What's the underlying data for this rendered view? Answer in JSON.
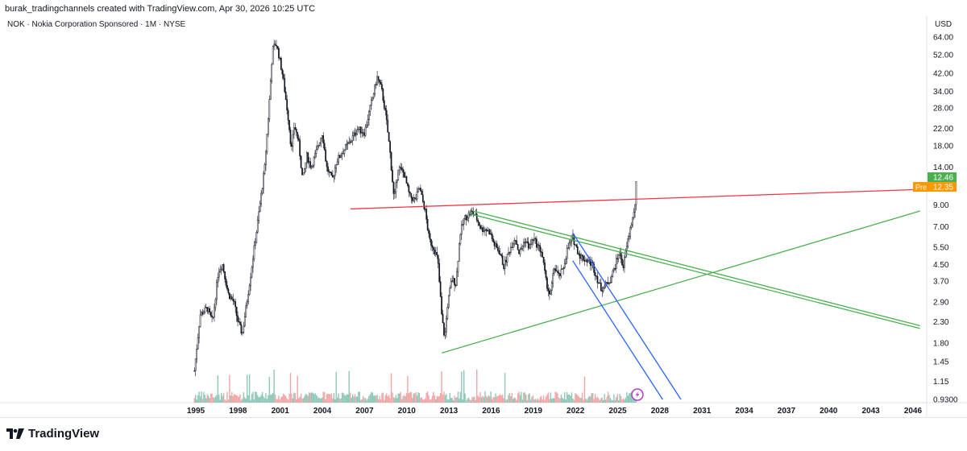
{
  "header": {
    "attribution": "burak_tradingchannels created with TradingView.com, Apr 30, 2026 10:25 UTC",
    "symbol": "NOK · Nokia Corporation Sponsored · 1M · NYSE"
  },
  "brand": {
    "name": "TradingView"
  },
  "price_axis": {
    "currency": "USD",
    "ticks": [
      {
        "label": "64.00",
        "v": 64
      },
      {
        "label": "52.00",
        "v": 52
      },
      {
        "label": "42.00",
        "v": 42
      },
      {
        "label": "34.00",
        "v": 34
      },
      {
        "label": "28.00",
        "v": 28
      },
      {
        "label": "22.00",
        "v": 22
      },
      {
        "label": "18.00",
        "v": 18
      },
      {
        "label": "14.00",
        "v": 14
      },
      {
        "label": "9.00",
        "v": 9
      },
      {
        "label": "7.00",
        "v": 7
      },
      {
        "label": "5.50",
        "v": 5.5
      },
      {
        "label": "4.50",
        "v": 4.5
      },
      {
        "label": "3.70",
        "v": 3.7
      },
      {
        "label": "2.90",
        "v": 2.9
      },
      {
        "label": "2.30",
        "v": 2.3
      },
      {
        "label": "1.80",
        "v": 1.8
      },
      {
        "label": "1.45",
        "v": 1.45
      },
      {
        "label": "1.15",
        "v": 1.15
      },
      {
        "label": "0.9300",
        "v": 0.93
      }
    ],
    "last_price": {
      "label": "12.46",
      "v": 12.46,
      "color": "#4caf50"
    },
    "pre_price": {
      "tag": "Pre",
      "label": "12.35",
      "v": 12.35,
      "color": "#ff9800"
    }
  },
  "time_axis": {
    "labels": [
      "1995",
      "1998",
      "2001",
      "2004",
      "2007",
      "2010",
      "2013",
      "2016",
      "2019",
      "2022",
      "2025",
      "2028",
      "2031",
      "2034",
      "2037",
      "2040",
      "2043",
      "2046"
    ]
  },
  "chart_data": {
    "type": "candlestick",
    "symbol": "NOK",
    "interval": "1M",
    "scale": "log",
    "ylim": [
      0.93,
      70
    ],
    "price_path": [
      [
        1994.9,
        1.3
      ],
      [
        1995.3,
        2.5
      ],
      [
        1995.8,
        2.7
      ],
      [
        1996.2,
        2.3
      ],
      [
        1996.6,
        4.2
      ],
      [
        1996.9,
        4.5
      ],
      [
        1997.3,
        3.2
      ],
      [
        1997.7,
        2.9
      ],
      [
        1998.0,
        2.3
      ],
      [
        1998.3,
        2.0
      ],
      [
        1998.6,
        2.8
      ],
      [
        1998.9,
        4.0
      ],
      [
        1999.3,
        6.5
      ],
      [
        1999.6,
        9.5
      ],
      [
        1999.9,
        14
      ],
      [
        2000.2,
        28
      ],
      [
        2000.45,
        55
      ],
      [
        2000.7,
        60
      ],
      [
        2000.9,
        52
      ],
      [
        2001.2,
        40
      ],
      [
        2001.6,
        24
      ],
      [
        2001.8,
        17
      ],
      [
        2002.0,
        23
      ],
      [
        2002.3,
        19
      ],
      [
        2002.6,
        12
      ],
      [
        2002.9,
        16
      ],
      [
        2003.2,
        14
      ],
      [
        2003.6,
        17
      ],
      [
        2004.0,
        21
      ],
      [
        2004.3,
        14
      ],
      [
        2004.7,
        12
      ],
      [
        2005.0,
        15
      ],
      [
        2005.5,
        17
      ],
      [
        2006.0,
        19
      ],
      [
        2006.5,
        22
      ],
      [
        2007.0,
        21
      ],
      [
        2007.5,
        30
      ],
      [
        2007.9,
        40
      ],
      [
        2008.2,
        35
      ],
      [
        2008.5,
        26
      ],
      [
        2008.8,
        17
      ],
      [
        2009.1,
        9.5
      ],
      [
        2009.4,
        14
      ],
      [
        2009.8,
        13
      ],
      [
        2010.2,
        10
      ],
      [
        2010.6,
        9.5
      ],
      [
        2010.9,
        11
      ],
      [
        2011.3,
        8.5
      ],
      [
        2011.6,
        6.0
      ],
      [
        2011.9,
        5.5
      ],
      [
        2012.2,
        4.8
      ],
      [
        2012.5,
        2.4
      ],
      [
        2012.7,
        1.9
      ],
      [
        2012.9,
        2.8
      ],
      [
        2013.2,
        3.8
      ],
      [
        2013.5,
        3.6
      ],
      [
        2013.8,
        6.5
      ],
      [
        2014.1,
        7.7
      ],
      [
        2014.6,
        8.3
      ],
      [
        2014.9,
        7.9
      ],
      [
        2015.3,
        6.8
      ],
      [
        2015.6,
        6.8
      ],
      [
        2015.9,
        6.6
      ],
      [
        2016.2,
        5.7
      ],
      [
        2016.6,
        5.2
      ],
      [
        2016.9,
        4.4
      ],
      [
        2017.3,
        5.3
      ],
      [
        2017.7,
        6.2
      ],
      [
        2018.0,
        5.1
      ],
      [
        2018.4,
        6.0
      ],
      [
        2018.7,
        5.5
      ],
      [
        2019.0,
        6.1
      ],
      [
        2019.3,
        5.6
      ],
      [
        2019.6,
        5.2
      ],
      [
        2019.9,
        3.7
      ],
      [
        2020.2,
        3.1
      ],
      [
        2020.5,
        4.4
      ],
      [
        2020.8,
        3.9
      ],
      [
        2021.1,
        4.2
      ],
      [
        2021.4,
        5.3
      ],
      [
        2021.8,
        6.2
      ],
      [
        2022.0,
        5.6
      ],
      [
        2022.3,
        5.0
      ],
      [
        2022.6,
        4.8
      ],
      [
        2022.9,
        4.7
      ],
      [
        2023.2,
        4.5
      ],
      [
        2023.5,
        3.9
      ],
      [
        2023.8,
        3.4
      ],
      [
        2024.1,
        3.5
      ],
      [
        2024.5,
        3.8
      ],
      [
        2024.8,
        4.4
      ],
      [
        2025.1,
        5.2
      ],
      [
        2025.4,
        4.4
      ],
      [
        2025.6,
        5.3
      ],
      [
        2025.8,
        6.3
      ],
      [
        2026.0,
        7.4
      ],
      [
        2026.2,
        8.4
      ],
      [
        2026.35,
        12.46
      ]
    ],
    "trendlines": [
      {
        "name": "resistance",
        "color": "#f23645",
        "points": [
          [
            2006.0,
            8.6
          ],
          [
            2046.5,
            10.8
          ]
        ]
      },
      {
        "name": "support",
        "color": "#4caf50",
        "points": [
          [
            2012.5,
            1.6
          ],
          [
            2046.5,
            8.4
          ]
        ]
      },
      {
        "name": "channel-upper-a",
        "color": "#4caf50",
        "points": [
          [
            2014.7,
            8.4
          ],
          [
            2046.5,
            2.2
          ]
        ]
      },
      {
        "name": "channel-upper-b",
        "color": "#4caf50",
        "points": [
          [
            2014.4,
            8.15
          ],
          [
            2046.5,
            2.13
          ]
        ]
      },
      {
        "name": "channel-down-a",
        "color": "#2962ff",
        "points": [
          [
            2021.8,
            6.5
          ],
          [
            2029.5,
            0.93
          ]
        ]
      },
      {
        "name": "channel-down-b",
        "color": "#2962ff",
        "points": [
          [
            2021.8,
            4.7
          ],
          [
            2028.2,
            0.93
          ]
        ]
      }
    ],
    "volume_color_up": "#8fc7b9",
    "volume_color_down": "#f0a6a6"
  }
}
